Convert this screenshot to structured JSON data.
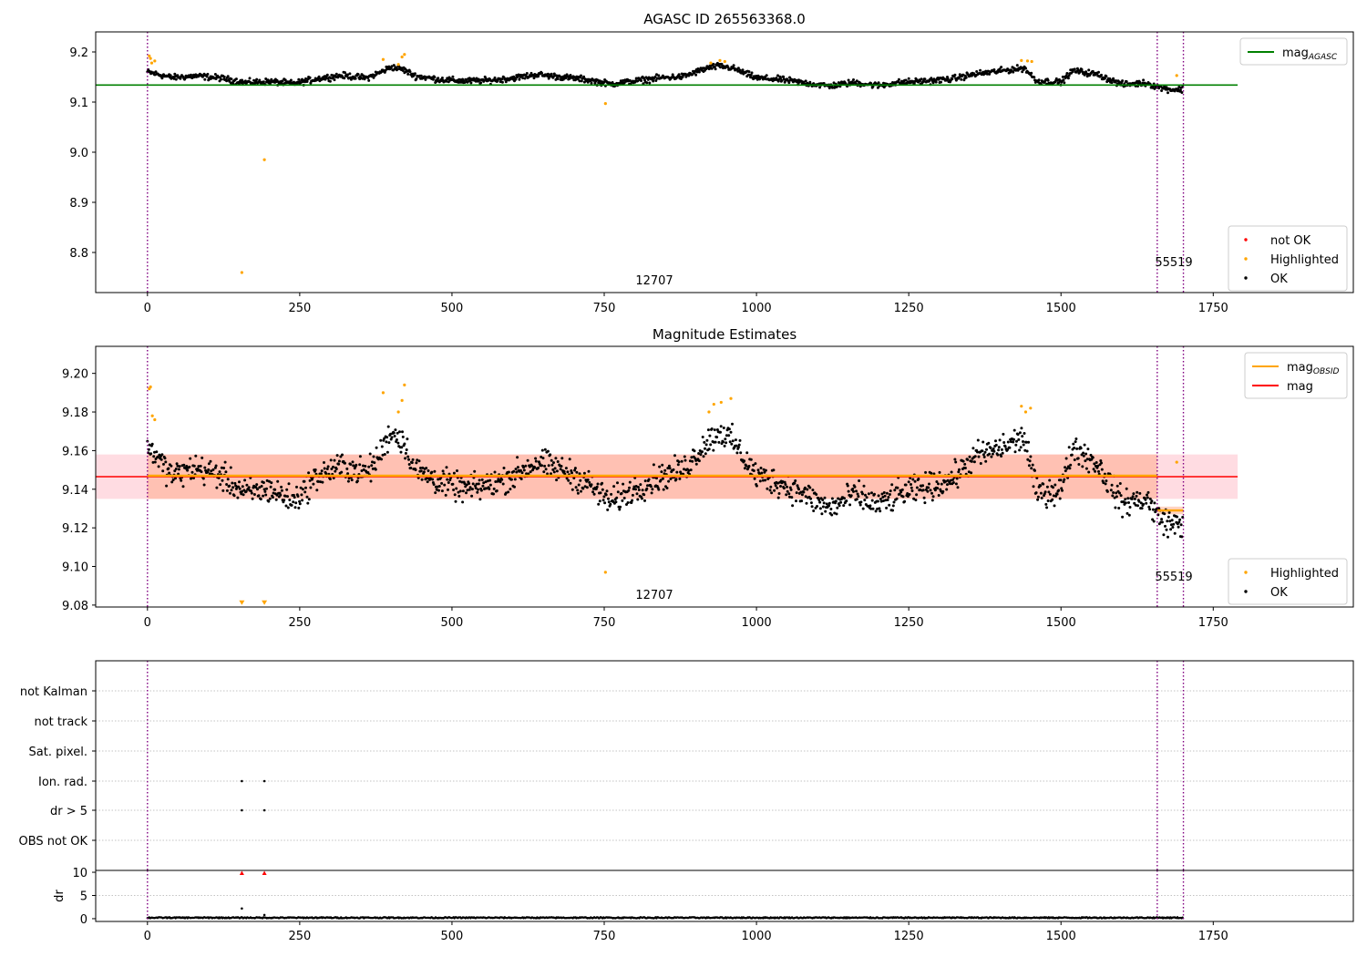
{
  "figure": {
    "panel1_title": "AGASC ID 265563368.0",
    "panel2_title": "Magnitude Estimates",
    "obsid_labels": [
      "12707",
      "55519"
    ],
    "colors": {
      "ok": "#000000",
      "highlighted": "#ffa500",
      "not_ok": "#ff0000",
      "mag_agasc": "#008000",
      "mag_obsid": "#ffa500",
      "mag": "#ff0000",
      "obsid_line": "#800080",
      "band_mag": "#ffc0cb",
      "band_obsid": "#ffa07a"
    }
  },
  "chart_data": [
    {
      "type": "scatter",
      "title": "AGASC ID 265563368.0",
      "xlim": [
        -85,
        1980
      ],
      "ylim": [
        8.72,
        9.24
      ],
      "xticks": [
        0,
        250,
        500,
        750,
        1000,
        1250,
        1500,
        1750
      ],
      "yticks": [
        8.8,
        8.9,
        9.0,
        9.1,
        9.2
      ],
      "ytick_labels": [
        "8.8",
        "8.9",
        "9.0",
        "9.1",
        "9.2"
      ],
      "obsid_boundaries": [
        0,
        1658,
        1701
      ],
      "obsid_labels": [
        {
          "x": 830,
          "text": "12707"
        },
        {
          "x": 1690,
          "text": "55519"
        }
      ],
      "mag_agasc": 9.134,
      "mag_agasc_xrange": [
        0,
        1790
      ],
      "legend_top": [
        {
          "label": "mag",
          "sub": "AGASC"
        }
      ],
      "legend_bottom": [
        {
          "label": "not OK"
        },
        {
          "label": "Highlighted"
        },
        {
          "label": "OK"
        }
      ],
      "legend_placement": "upper-right and lower-right",
      "ok_points": [
        [
          0,
          9.16
        ],
        [
          40,
          9.149
        ],
        [
          80,
          9.152
        ],
        [
          120,
          9.148
        ],
        [
          160,
          9.139
        ],
        [
          200,
          9.141
        ],
        [
          240,
          9.137
        ],
        [
          280,
          9.147
        ],
        [
          320,
          9.153
        ],
        [
          360,
          9.148
        ],
        [
          380,
          9.158
        ],
        [
          400,
          9.17
        ],
        [
          420,
          9.165
        ],
        [
          440,
          9.152
        ],
        [
          480,
          9.145
        ],
        [
          520,
          9.142
        ],
        [
          560,
          9.143
        ],
        [
          600,
          9.148
        ],
        [
          640,
          9.155
        ],
        [
          680,
          9.15
        ],
        [
          720,
          9.145
        ],
        [
          760,
          9.136
        ],
        [
          800,
          9.142
        ],
        [
          840,
          9.148
        ],
        [
          880,
          9.151
        ],
        [
          920,
          9.168
        ],
        [
          940,
          9.172
        ],
        [
          960,
          9.168
        ],
        [
          1000,
          9.148
        ],
        [
          1040,
          9.145
        ],
        [
          1080,
          9.138
        ],
        [
          1120,
          9.132
        ],
        [
          1160,
          9.139
        ],
        [
          1200,
          9.133
        ],
        [
          1240,
          9.14
        ],
        [
          1280,
          9.142
        ],
        [
          1320,
          9.146
        ],
        [
          1360,
          9.156
        ],
        [
          1400,
          9.162
        ],
        [
          1440,
          9.168
        ],
        [
          1460,
          9.142
        ],
        [
          1500,
          9.14
        ],
        [
          1520,
          9.163
        ],
        [
          1560,
          9.155
        ],
        [
          1600,
          9.135
        ],
        [
          1640,
          9.138
        ],
        [
          1660,
          9.13
        ],
        [
          1680,
          9.125
        ],
        [
          1700,
          9.125
        ]
      ],
      "highlighted_points": [
        [
          3,
          9.192
        ],
        [
          5,
          9.187
        ],
        [
          7,
          9.178
        ],
        [
          12,
          9.182
        ],
        [
          155,
          8.76
        ],
        [
          192,
          8.985
        ],
        [
          387,
          9.185
        ],
        [
          412,
          9.175
        ],
        [
          418,
          9.19
        ],
        [
          422,
          9.195
        ],
        [
          752,
          9.097
        ],
        [
          925,
          9.178
        ],
        [
          940,
          9.183
        ],
        [
          948,
          9.181
        ],
        [
          1435,
          9.183
        ],
        [
          1445,
          9.182
        ],
        [
          1452,
          9.181
        ],
        [
          1690,
          9.153
        ]
      ],
      "not_ok_points": []
    },
    {
      "type": "scatter",
      "title": "Magnitude Estimates",
      "xlim": [
        -85,
        1980
      ],
      "ylim": [
        9.079,
        9.214
      ],
      "xticks": [
        0,
        250,
        500,
        750,
        1000,
        1250,
        1500,
        1750
      ],
      "yticks": [
        9.08,
        9.1,
        9.12,
        9.14,
        9.16,
        9.18,
        9.2
      ],
      "ytick_labels": [
        "9.08",
        "9.10",
        "9.12",
        "9.14",
        "9.16",
        "9.18",
        "9.20"
      ],
      "obsid_boundaries": [
        0,
        1658,
        1701
      ],
      "obsid_labels": [
        {
          "x": 830,
          "text": "12707"
        },
        {
          "x": 1690,
          "text": "55519"
        }
      ],
      "mag": 9.1465,
      "mag_band": [
        9.135,
        9.158
      ],
      "mag_xrange": [
        -85,
        1790
      ],
      "mag_obsid_segments": [
        {
          "x": [
            0,
            1658
          ],
          "y": 9.147,
          "band": [
            9.135,
            9.158
          ]
        },
        {
          "x": [
            1658,
            1701
          ],
          "y": 9.129,
          "band": [
            9.127,
            9.131
          ]
        }
      ],
      "legend_top": [
        {
          "label": "mag",
          "sub": "OBSID"
        },
        {
          "label": "mag"
        }
      ],
      "legend_bottom": [
        {
          "label": "Highlighted"
        },
        {
          "label": "OK"
        }
      ],
      "legend_placement": "upper-right and lower-right",
      "ok_points": [
        [
          0,
          9.163
        ],
        [
          40,
          9.147
        ],
        [
          80,
          9.151
        ],
        [
          120,
          9.147
        ],
        [
          160,
          9.138
        ],
        [
          200,
          9.14
        ],
        [
          240,
          9.134
        ],
        [
          280,
          9.147
        ],
        [
          320,
          9.152
        ],
        [
          360,
          9.148
        ],
        [
          380,
          9.157
        ],
        [
          400,
          9.17
        ],
        [
          420,
          9.165
        ],
        [
          440,
          9.15
        ],
        [
          480,
          9.144
        ],
        [
          520,
          9.14
        ],
        [
          560,
          9.142
        ],
        [
          600,
          9.147
        ],
        [
          640,
          9.154
        ],
        [
          680,
          9.15
        ],
        [
          720,
          9.144
        ],
        [
          760,
          9.133
        ],
        [
          800,
          9.14
        ],
        [
          840,
          9.146
        ],
        [
          880,
          9.15
        ],
        [
          920,
          9.165
        ],
        [
          940,
          9.17
        ],
        [
          960,
          9.165
        ],
        [
          1000,
          9.147
        ],
        [
          1040,
          9.143
        ],
        [
          1080,
          9.137
        ],
        [
          1120,
          9.13
        ],
        [
          1160,
          9.137
        ],
        [
          1200,
          9.132
        ],
        [
          1240,
          9.138
        ],
        [
          1280,
          9.141
        ],
        [
          1320,
          9.145
        ],
        [
          1360,
          9.157
        ],
        [
          1400,
          9.161
        ],
        [
          1440,
          9.167
        ],
        [
          1460,
          9.138
        ],
        [
          1500,
          9.14
        ],
        [
          1520,
          9.162
        ],
        [
          1560,
          9.153
        ],
        [
          1600,
          9.133
        ],
        [
          1640,
          9.135
        ],
        [
          1660,
          9.126
        ],
        [
          1680,
          9.122
        ],
        [
          1700,
          9.122
        ]
      ],
      "highlighted_points": [
        [
          3,
          9.192
        ],
        [
          5,
          9.193
        ],
        [
          8,
          9.178
        ],
        [
          12,
          9.176
        ],
        [
          155,
          9.081
        ],
        [
          192,
          9.081
        ],
        [
          387,
          9.19
        ],
        [
          412,
          9.18
        ],
        [
          418,
          9.186
        ],
        [
          422,
          9.194
        ],
        [
          752,
          9.097
        ],
        [
          922,
          9.18
        ],
        [
          930,
          9.184
        ],
        [
          942,
          9.185
        ],
        [
          958,
          9.187
        ],
        [
          1435,
          9.183
        ],
        [
          1442,
          9.18
        ],
        [
          1450,
          9.182
        ],
        [
          1690,
          9.154
        ]
      ]
    },
    {
      "type": "scatter",
      "title": "",
      "xlim": [
        -85,
        1980
      ],
      "flag_rows": [
        "not Kalman",
        "not track",
        "Sat. pixel.",
        "Ion. rad.",
        "dr > 5",
        "OBS not OK"
      ],
      "flag_points": {
        "Ion. rad.": [
          155,
          192
        ],
        "dr > 5": [
          155,
          192
        ]
      },
      "obsid_boundaries": [
        0,
        1658,
        1701
      ]
    },
    {
      "type": "scatter",
      "title": "",
      "xlim": [
        -85,
        1980
      ],
      "ylim": [
        -0.6,
        10.4
      ],
      "ylabel": "dr",
      "yticks": [
        0,
        5,
        10
      ],
      "xticks": [
        0,
        250,
        500,
        750,
        1000,
        1250,
        1500,
        1750
      ],
      "red_markers": [
        [
          155,
          9.8
        ],
        [
          192,
          9.8
        ]
      ],
      "outliers": [
        [
          155,
          2.2
        ],
        [
          192,
          0.8
        ]
      ],
      "baseline": 0.2,
      "obsid_boundaries": [
        0,
        1658,
        1701
      ]
    }
  ]
}
